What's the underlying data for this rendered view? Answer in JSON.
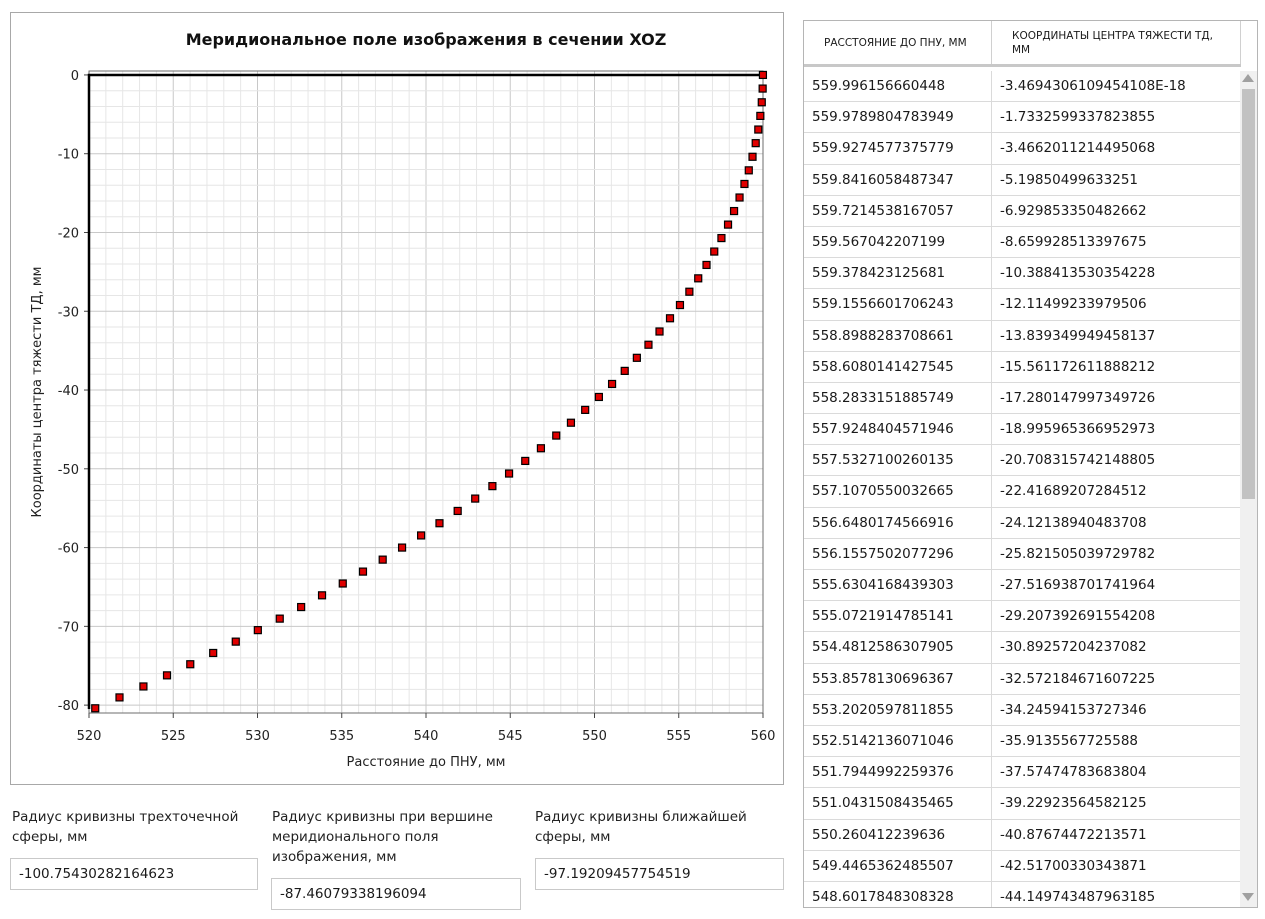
{
  "chart_data": {
    "type": "scatter",
    "title": "Меридиональное поле изображения в сечении XOZ",
    "xlabel": "Расстояние до ПНУ, мм",
    "ylabel": "Координаты центра тяжести ТД, мм",
    "xlim": [
      520,
      560
    ],
    "ylim": [
      -81,
      0.5
    ],
    "xticks": [
      "520",
      "525",
      "530",
      "535",
      "540",
      "545",
      "550",
      "555",
      "560"
    ],
    "yticks": [
      "0",
      "-10",
      "-20",
      "-30",
      "-40",
      "-50",
      "-60",
      "-70",
      "-80"
    ],
    "grid": true,
    "marker_color": "#e00000",
    "line": {
      "x": [
        520,
        520,
        560
      ],
      "y": [
        -80.5,
        0,
        0
      ]
    },
    "points": [
      [
        559.996,
        0.0
      ],
      [
        559.979,
        -1.73
      ],
      [
        559.927,
        -3.47
      ],
      [
        559.842,
        -5.2
      ],
      [
        559.721,
        -6.93
      ],
      [
        559.567,
        -8.66
      ],
      [
        559.378,
        -10.39
      ],
      [
        559.156,
        -12.11
      ],
      [
        558.899,
        -13.84
      ],
      [
        558.608,
        -15.56
      ],
      [
        558.283,
        -17.28
      ],
      [
        557.925,
        -19.0
      ],
      [
        557.533,
        -20.71
      ],
      [
        557.107,
        -22.42
      ],
      [
        556.648,
        -24.12
      ],
      [
        556.156,
        -25.82
      ],
      [
        555.63,
        -27.52
      ],
      [
        555.072,
        -29.21
      ],
      [
        554.481,
        -30.89
      ],
      [
        553.858,
        -32.57
      ],
      [
        553.202,
        -34.25
      ],
      [
        552.514,
        -35.91
      ],
      [
        551.794,
        -37.57
      ],
      [
        551.043,
        -39.23
      ],
      [
        550.26,
        -40.88
      ],
      [
        549.447,
        -42.52
      ],
      [
        548.602,
        -44.15
      ],
      [
        547.73,
        -45.78
      ],
      [
        546.82,
        -47.39
      ],
      [
        545.89,
        -49.0
      ],
      [
        544.93,
        -50.6
      ],
      [
        543.94,
        -52.2
      ],
      [
        542.92,
        -53.78
      ],
      [
        541.88,
        -55.35
      ],
      [
        540.8,
        -56.91
      ],
      [
        539.71,
        -58.46
      ],
      [
        538.58,
        -60.0
      ],
      [
        537.43,
        -61.53
      ],
      [
        536.26,
        -63.05
      ],
      [
        535.06,
        -64.56
      ],
      [
        533.83,
        -66.06
      ],
      [
        532.59,
        -67.55
      ],
      [
        531.32,
        -69.02
      ],
      [
        530.02,
        -70.48
      ],
      [
        528.71,
        -71.94
      ],
      [
        527.37,
        -73.38
      ],
      [
        526.01,
        -74.81
      ],
      [
        524.63,
        -76.22
      ],
      [
        523.23,
        -77.63
      ],
      [
        521.81,
        -79.02
      ],
      [
        520.37,
        -80.4
      ]
    ]
  },
  "fields": [
    {
      "label": "Радиус кривизны трехточечной сферы, мм",
      "value": "-100.75430282164623"
    },
    {
      "label": "Радиус кривизны при вершине меридионального поля изображения, мм",
      "value": "-87.46079338196094"
    },
    {
      "label": "Радиус кривизны ближайшей сферы, мм",
      "value": "-97.19209457754519"
    }
  ],
  "table": {
    "headers": [
      "РАССТОЯНИЕ ДО ПНУ, ММ",
      "КООРДИНАТЫ ЦЕНТРА ТЯЖЕСТИ ТД, ММ"
    ],
    "rows": [
      [
        "559.996156660448",
        "-3.4694306109454108E-18"
      ],
      [
        "559.9789804783949",
        "-1.7332599337823855"
      ],
      [
        "559.9274577375779",
        "-3.4662011214495068"
      ],
      [
        "559.8416058487347",
        "-5.19850499633251"
      ],
      [
        "559.7214538167057",
        "-6.92985335048266​2"
      ],
      [
        "559.567042207199",
        "-8.659928513397675"
      ],
      [
        "559.378423125681",
        "-10.38841353035422​8"
      ],
      [
        "559.1556601706243",
        "-12.11499233979506"
      ],
      [
        "558.8988283708661",
        "-13.839349949458137"
      ],
      [
        "558.6080141427545",
        "-15.561172611888212"
      ],
      [
        "558.2833151885749",
        "-17.280147997349726"
      ],
      [
        "557.9248404571946",
        "-18.995965366952973"
      ],
      [
        "557.5327100260135",
        "-20.708315742148805"
      ],
      [
        "557.1070550032665",
        "-22.41689207284512"
      ],
      [
        "556.6480174566916",
        "-24.12138940483708"
      ],
      [
        "556.1557502077296",
        "-25.821505039729782"
      ],
      [
        "555.6304168439303",
        "-27.516938701741964"
      ],
      [
        "555.0721914785141",
        "-29.207392691554208"
      ],
      [
        "554.4812586307905",
        "-30.89257204237082"
      ],
      [
        "553.8578130696367",
        "-32.572184671607225"
      ],
      [
        "553.2020597811855",
        "-34.24594153727346"
      ],
      [
        "552.5142136071046",
        "-35.9135567725588"
      ],
      [
        "551.7944992259376",
        "-37.57474783683804"
      ],
      [
        "551.0431508435465",
        "-39.22923564582125"
      ],
      [
        "550.260412239636",
        "-40.87674472213571"
      ],
      [
        "549.4465362485507",
        "-42.51700330343871"
      ],
      [
        "548.6017848308328",
        "-44.149743487963185"
      ]
    ]
  }
}
